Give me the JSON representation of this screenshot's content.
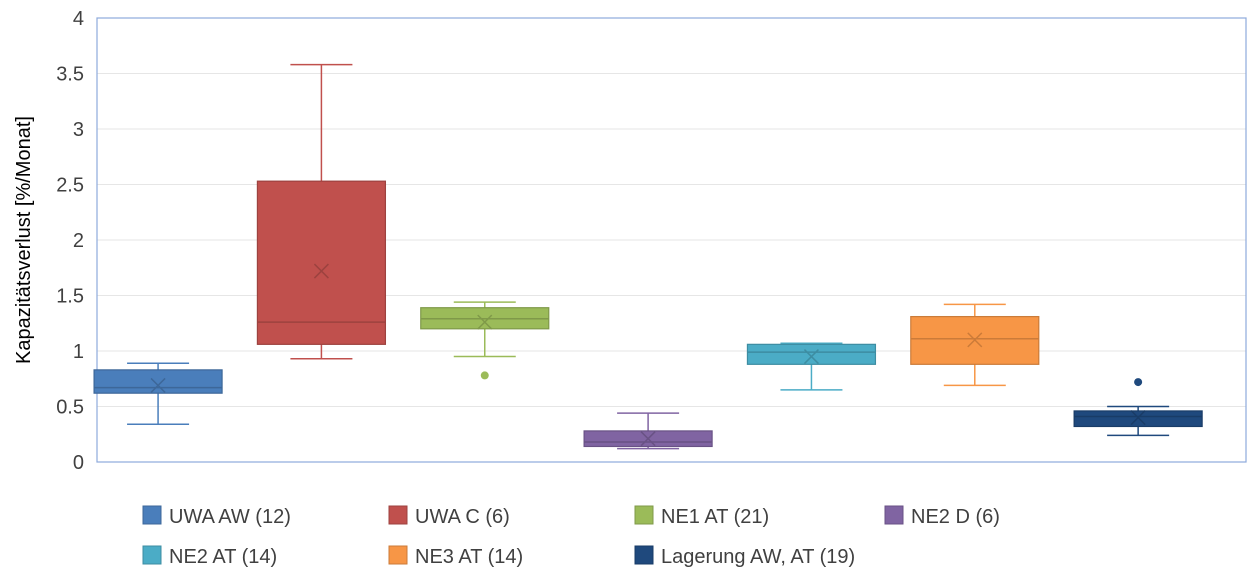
{
  "chart_data": {
    "type": "boxplot",
    "title": "",
    "xlabel": "",
    "ylabel": "Kapazitätsverlust  [%/Monat]",
    "ylim": [
      0,
      4
    ],
    "yticks": [
      "0",
      "0.5",
      "1",
      "1.5",
      "2",
      "2.5",
      "3",
      "3.5",
      "4"
    ],
    "grid": true,
    "legend_position": "bottom",
    "series": [
      {
        "name": "UWA AW (12)",
        "color": "#4a7ebb",
        "whisker_low": 0.34,
        "q1": 0.62,
        "median": 0.67,
        "q3": 0.83,
        "whisker_high": 0.89,
        "mean": 0.69,
        "outliers": []
      },
      {
        "name": "UWA C (6)",
        "color": "#c0504d",
        "whisker_low": 0.93,
        "q1": 1.06,
        "median": 1.26,
        "q3": 2.53,
        "whisker_high": 3.58,
        "mean": 1.72,
        "outliers": []
      },
      {
        "name": "NE1 AT (21)",
        "color": "#9bbb59",
        "whisker_low": 0.95,
        "q1": 1.2,
        "median": 1.29,
        "q3": 1.39,
        "whisker_high": 1.44,
        "mean": 1.26,
        "outliers": [
          0.78
        ]
      },
      {
        "name": "NE2 D (6)",
        "color": "#8064a2",
        "whisker_low": 0.12,
        "q1": 0.14,
        "median": 0.18,
        "q3": 0.28,
        "whisker_high": 0.44,
        "mean": 0.21,
        "outliers": []
      },
      {
        "name": "NE2 AT (14)",
        "color": "#4bacc6",
        "whisker_low": 0.65,
        "q1": 0.88,
        "median": 0.99,
        "q3": 1.06,
        "whisker_high": 1.07,
        "mean": 0.95,
        "outliers": []
      },
      {
        "name": "NE3 AT (14)",
        "color": "#f79646",
        "whisker_low": 0.69,
        "q1": 0.88,
        "median": 1.11,
        "q3": 1.31,
        "whisker_high": 1.42,
        "mean": 1.1,
        "outliers": []
      },
      {
        "name": "Lagerung AW, AT (19)",
        "color": "#1f497d",
        "whisker_low": 0.24,
        "q1": 0.32,
        "median": 0.41,
        "q3": 0.46,
        "whisker_high": 0.5,
        "mean": 0.4,
        "outliers": [
          0.72
        ]
      }
    ]
  },
  "colors": {
    "grid": "#e6e6e6",
    "plot_border": "#8eaadb",
    "tick_text": "#404040",
    "axis_title": "#000000"
  }
}
